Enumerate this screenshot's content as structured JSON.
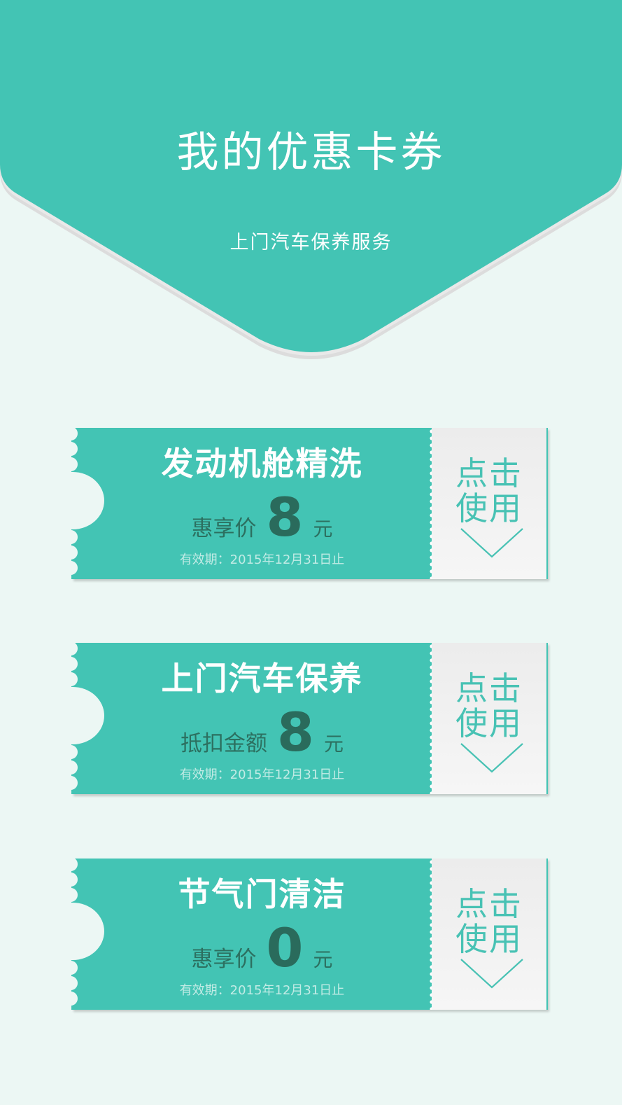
{
  "header": {
    "title": "我的优惠卡券",
    "subtitle": "上门汽车保养服务"
  },
  "theme": {
    "accent": "#43c4b4",
    "background": "#ecf7f4",
    "price_text": "#2c7060"
  },
  "coupons": [
    {
      "name": "发动机舱精洗",
      "price_label": "惠享价",
      "price_value": "8",
      "price_unit": "元",
      "expiry": "有效期：2015年12月31日止",
      "action_label": "点击使用"
    },
    {
      "name": "上门汽车保养",
      "price_label": "抵扣金额",
      "price_value": "8",
      "price_unit": "元",
      "expiry": "有效期：2015年12月31日止",
      "action_label": "点击使用"
    },
    {
      "name": "节气门清洁",
      "price_label": "惠享价",
      "price_value": "0",
      "price_unit": "元",
      "expiry": "有效期：2015年12月31日止",
      "action_label": "点击使用"
    }
  ],
  "icons": {
    "action": "chevron-down-icon"
  }
}
